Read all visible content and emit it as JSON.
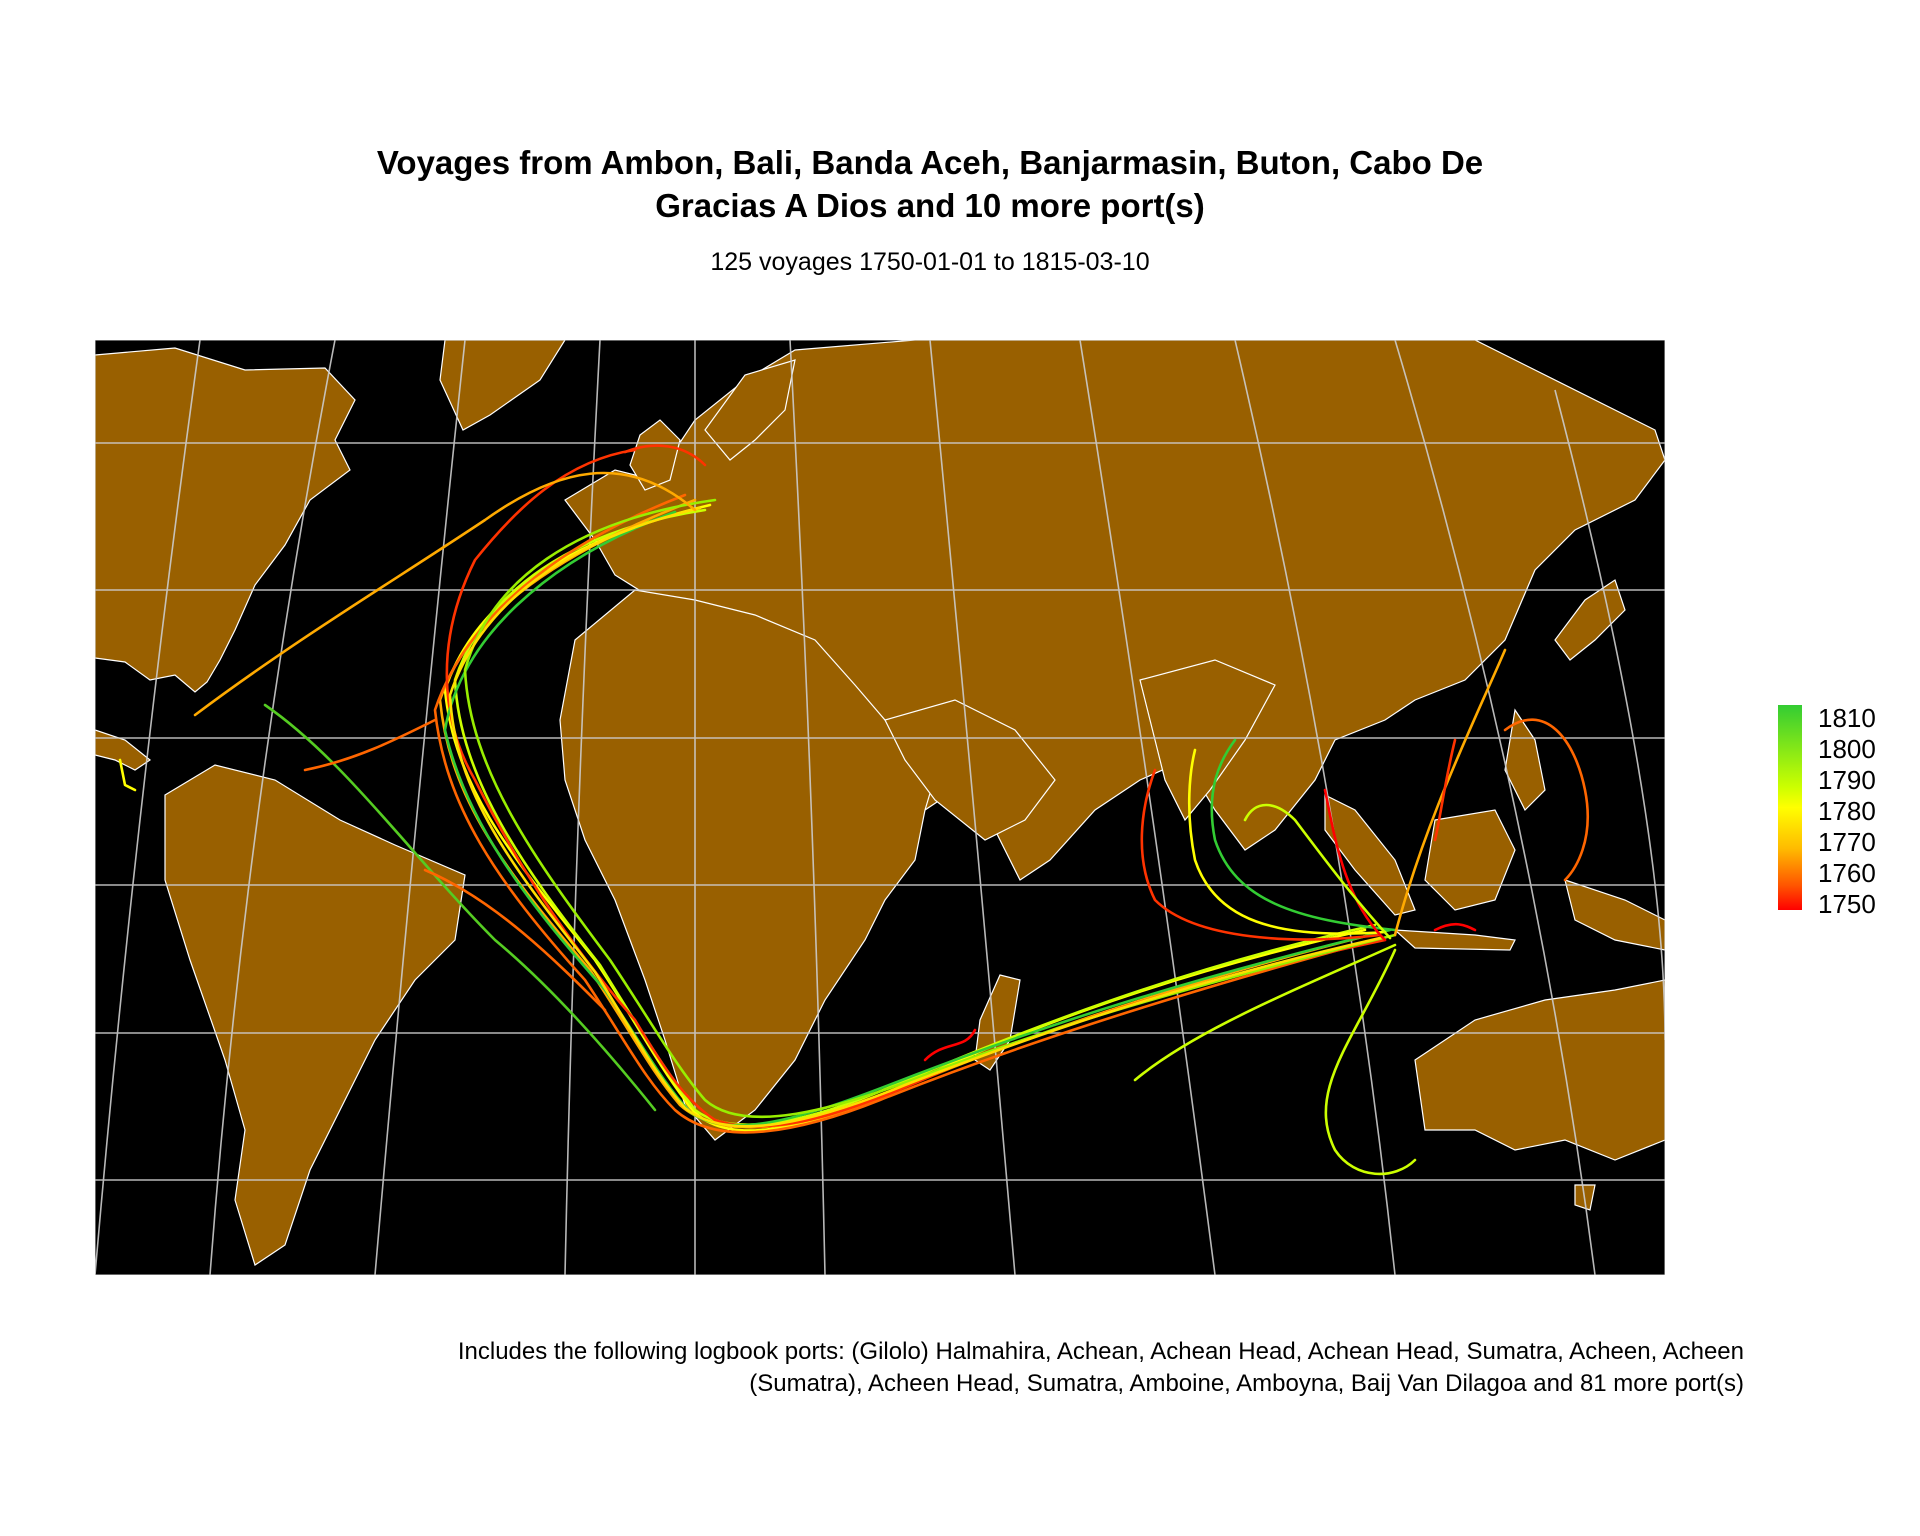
{
  "title": {
    "line1": "Voyages from Ambon, Bali, Banda Aceh, Banjarmasin, Buton, Cabo De",
    "line2": "Gracias A Dios and 10 more port(s)"
  },
  "subtitle": "125 voyages 1750-01-01 to 1815-03-10",
  "caption": {
    "line1": "Includes the following logbook ports: (Gilolo) Halmahira, Achean, Achean Head, Achean Head, Sumatra, Acheen, Acheen",
    "line2": "(Sumatra), Acheen Head, Sumatra, Amboine, Amboyna, Baij Van Dilagoa and 81 more port(s)"
  },
  "legend": {
    "labels": [
      "1810",
      "1800",
      "1790",
      "1780",
      "1770",
      "1760",
      "1750"
    ],
    "colors": {
      "1810": "#33cc33",
      "1780": "#ffff00",
      "1750": "#ff0000"
    }
  },
  "colors": {
    "ocean": "#000000",
    "land": "#996000",
    "borders": "#ffffff",
    "graticule": "#cccccc"
  }
}
